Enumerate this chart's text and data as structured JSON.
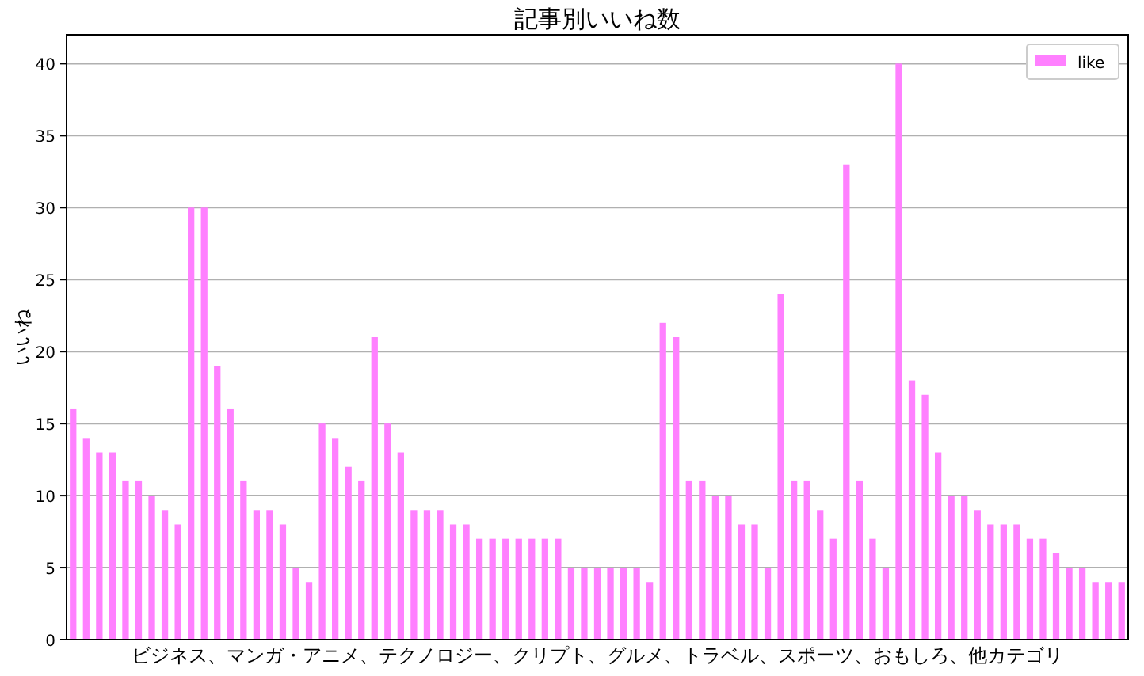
{
  "chart_data": {
    "type": "bar",
    "title": "記事別いいね数",
    "xlabel": "ビジネス、マンガ・アニメ、テクノロジー、クリプト、グルメ、トラベル、スポーツ、おもしろ、他カテゴリ",
    "ylabel": "いいね",
    "categories": [
      null,
      null,
      null,
      null,
      null,
      null,
      null,
      null,
      null,
      null,
      null,
      null,
      null,
      null,
      null,
      null,
      null,
      null,
      null,
      null,
      null,
      null,
      null,
      null,
      null,
      null,
      null,
      null,
      null,
      null,
      null,
      null,
      null,
      null,
      null,
      null,
      null,
      null,
      null,
      null,
      null,
      null,
      null,
      null,
      null,
      null,
      null,
      null,
      null,
      null,
      null,
      null,
      null,
      null,
      null,
      null,
      null,
      null,
      null,
      null,
      null,
      null,
      null,
      null,
      null,
      null,
      null,
      null,
      null,
      null,
      null,
      null,
      null,
      null,
      null,
      null,
      null,
      null,
      null,
      null,
      null
    ],
    "series": [
      {
        "name": "like",
        "color": "#ff80ff",
        "values": [
          16,
          14,
          13,
          13,
          11,
          11,
          10,
          9,
          8,
          30,
          30,
          19,
          16,
          11,
          9,
          9,
          8,
          5,
          4,
          15,
          14,
          12,
          11,
          21,
          15,
          13,
          9,
          9,
          9,
          8,
          8,
          7,
          7,
          7,
          7,
          7,
          7,
          7,
          5,
          5,
          5,
          5,
          5,
          5,
          4,
          22,
          21,
          11,
          11,
          10,
          10,
          8,
          8,
          5,
          24,
          11,
          11,
          9,
          7,
          33,
          11,
          7,
          5,
          40,
          18,
          17,
          13,
          10,
          10,
          9,
          8,
          8,
          8,
          7,
          7,
          6,
          5,
          5,
          4,
          4,
          4
        ]
      }
    ],
    "ylim": [
      0,
      42
    ],
    "yticks": [
      0,
      5,
      10,
      15,
      20,
      25,
      30,
      35,
      40
    ],
    "grid": "y",
    "legend": "top right"
  }
}
